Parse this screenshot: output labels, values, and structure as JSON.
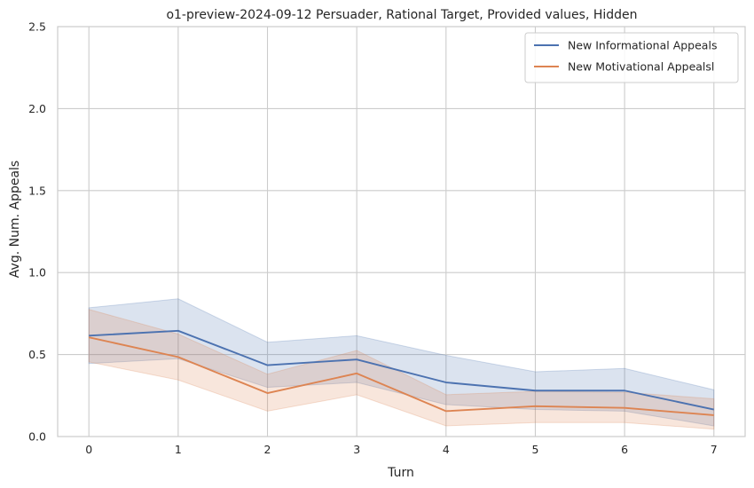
{
  "chart_data": {
    "type": "line",
    "title": "o1-preview-2024-09-12 Persuader, Rational Target, Provided values, Hidden",
    "xlabel": "Turn",
    "ylabel": "Avg. Num. Appeals",
    "x": [
      0,
      1,
      2,
      3,
      4,
      5,
      6,
      7
    ],
    "xticks": [
      "0",
      "1",
      "2",
      "3",
      "4",
      "5",
      "6",
      "7"
    ],
    "yticks": [
      "0.0",
      "0.5",
      "1.0",
      "1.5",
      "2.0",
      "2.5"
    ],
    "xlim": [
      -0.35,
      7.35
    ],
    "ylim": [
      0,
      2.5
    ],
    "grid": true,
    "legend_position": "top-right",
    "series": [
      {
        "name": "New Informational Appeals",
        "color": "#4c72b0",
        "values": [
          0.615,
          0.645,
          0.435,
          0.47,
          0.33,
          0.28,
          0.28,
          0.165
        ],
        "ci_low": [
          0.445,
          0.475,
          0.3,
          0.33,
          0.195,
          0.165,
          0.155,
          0.065
        ],
        "ci_high": [
          0.785,
          0.84,
          0.575,
          0.615,
          0.495,
          0.395,
          0.415,
          0.285
        ]
      },
      {
        "name": "New Motivational Appealsl",
        "color": "#dd8452",
        "values": [
          0.605,
          0.485,
          0.265,
          0.385,
          0.155,
          0.185,
          0.175,
          0.13
        ],
        "ci_low": [
          0.455,
          0.345,
          0.155,
          0.255,
          0.065,
          0.085,
          0.085,
          0.045
        ],
        "ci_high": [
          0.775,
          0.625,
          0.38,
          0.525,
          0.255,
          0.275,
          0.27,
          0.23
        ]
      }
    ]
  }
}
